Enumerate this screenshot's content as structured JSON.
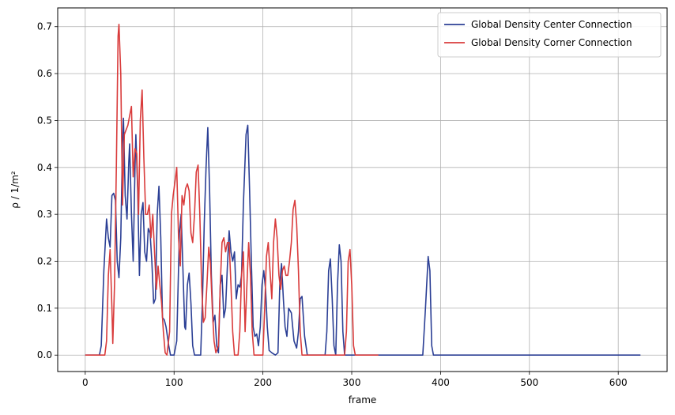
{
  "chart_data": {
    "type": "line",
    "xlabel": "frame",
    "ylabel": "ρ / 1/m²",
    "xlim": [
      -31,
      655
    ],
    "ylim": [
      -0.035,
      0.74
    ],
    "xticks": [
      0,
      100,
      200,
      300,
      400,
      500,
      600
    ],
    "xtick_labels": [
      "0",
      "100",
      "200",
      "300",
      "400",
      "500",
      "600"
    ],
    "yticks": [
      0.0,
      0.1,
      0.2,
      0.3,
      0.4,
      0.5,
      0.6,
      0.7
    ],
    "ytick_labels": [
      "0.0",
      "0.1",
      "0.2",
      "0.3",
      "0.4",
      "0.5",
      "0.6",
      "0.7"
    ],
    "grid": true,
    "legend_position": "top-right",
    "series": [
      {
        "name": "Global Density Center Connection",
        "color": "#2b3f95",
        "points": [
          [
            0,
            0
          ],
          [
            16,
            0
          ],
          [
            18,
            0.02
          ],
          [
            21,
            0.18
          ],
          [
            24,
            0.29
          ],
          [
            26,
            0.25
          ],
          [
            28,
            0.23
          ],
          [
            30,
            0.34
          ],
          [
            32,
            0.345
          ],
          [
            34,
            0.33
          ],
          [
            36,
            0.2
          ],
          [
            38,
            0.165
          ],
          [
            40,
            0.25
          ],
          [
            42,
            0.45
          ],
          [
            43,
            0.505
          ],
          [
            45,
            0.34
          ],
          [
            47,
            0.29
          ],
          [
            49,
            0.41
          ],
          [
            50,
            0.45
          ],
          [
            52,
            0.3
          ],
          [
            54,
            0.2
          ],
          [
            56,
            0.4
          ],
          [
            57,
            0.47
          ],
          [
            59,
            0.35
          ],
          [
            61,
            0.17
          ],
          [
            63,
            0.3
          ],
          [
            65,
            0.325
          ],
          [
            67,
            0.22
          ],
          [
            69,
            0.2
          ],
          [
            71,
            0.27
          ],
          [
            73,
            0.26
          ],
          [
            75,
            0.2
          ],
          [
            77,
            0.11
          ],
          [
            79,
            0.12
          ],
          [
            81,
            0.3
          ],
          [
            83,
            0.36
          ],
          [
            85,
            0.25
          ],
          [
            87,
            0.08
          ],
          [
            89,
            0.075
          ],
          [
            91,
            0.06
          ],
          [
            94,
            0.02
          ],
          [
            96,
            0
          ],
          [
            100,
            0
          ],
          [
            103,
            0.03
          ],
          [
            106,
            0.26
          ],
          [
            108,
            0.3
          ],
          [
            110,
            0.18
          ],
          [
            112,
            0.06
          ],
          [
            113,
            0.055
          ],
          [
            115,
            0.15
          ],
          [
            117,
            0.175
          ],
          [
            119,
            0.11
          ],
          [
            121,
            0.02
          ],
          [
            123,
            0
          ],
          [
            130,
            0
          ],
          [
            132,
            0.12
          ],
          [
            134,
            0.28
          ],
          [
            136,
            0.4
          ],
          [
            138,
            0.485
          ],
          [
            140,
            0.35
          ],
          [
            142,
            0.17
          ],
          [
            144,
            0.07
          ],
          [
            146,
            0.085
          ],
          [
            148,
            0.02
          ],
          [
            150,
            0.005
          ],
          [
            152,
            0.15
          ],
          [
            154,
            0.17
          ],
          [
            156,
            0.08
          ],
          [
            158,
            0.1
          ],
          [
            160,
            0.19
          ],
          [
            162,
            0.265
          ],
          [
            164,
            0.22
          ],
          [
            166,
            0.2
          ],
          [
            168,
            0.22
          ],
          [
            170,
            0.12
          ],
          [
            172,
            0.15
          ],
          [
            174,
            0.145
          ],
          [
            176,
            0.17
          ],
          [
            178,
            0.32
          ],
          [
            181,
            0.47
          ],
          [
            183,
            0.49
          ],
          [
            185,
            0.35
          ],
          [
            187,
            0.2
          ],
          [
            189,
            0.06
          ],
          [
            191,
            0.04
          ],
          [
            193,
            0.045
          ],
          [
            195,
            0.02
          ],
          [
            197,
            0.06
          ],
          [
            199,
            0.15
          ],
          [
            201,
            0.18
          ],
          [
            203,
            0.14
          ],
          [
            205,
            0.06
          ],
          [
            207,
            0.01
          ],
          [
            210,
            0.005
          ],
          [
            214,
            0
          ],
          [
            217,
            0.005
          ],
          [
            219,
            0.15
          ],
          [
            221,
            0.195
          ],
          [
            223,
            0.12
          ],
          [
            225,
            0.06
          ],
          [
            227,
            0.04
          ],
          [
            229,
            0.1
          ],
          [
            232,
            0.09
          ],
          [
            235,
            0.03
          ],
          [
            238,
            0.015
          ],
          [
            240,
            0.05
          ],
          [
            242,
            0.12
          ],
          [
            244,
            0.125
          ],
          [
            247,
            0.04
          ],
          [
            250,
            0
          ],
          [
            270,
            0
          ],
          [
            272,
            0.05
          ],
          [
            274,
            0.18
          ],
          [
            276,
            0.205
          ],
          [
            278,
            0.12
          ],
          [
            280,
            0.02
          ],
          [
            282,
            0
          ],
          [
            284,
            0.15
          ],
          [
            286,
            0.235
          ],
          [
            288,
            0.2
          ],
          [
            290,
            0.05
          ],
          [
            292,
            0
          ],
          [
            380,
            0
          ],
          [
            383,
            0.1
          ],
          [
            386,
            0.21
          ],
          [
            388,
            0.18
          ],
          [
            390,
            0.02
          ],
          [
            392,
            0
          ],
          [
            625,
            0
          ]
        ]
      },
      {
        "name": "Global Density Corner Connection",
        "color": "#d93b3b",
        "points": [
          [
            0,
            0
          ],
          [
            22,
            0
          ],
          [
            24,
            0.03
          ],
          [
            26,
            0.17
          ],
          [
            28,
            0.225
          ],
          [
            30,
            0.1
          ],
          [
            31,
            0.025
          ],
          [
            33,
            0.15
          ],
          [
            35,
            0.4
          ],
          [
            37,
            0.68
          ],
          [
            38,
            0.705
          ],
          [
            40,
            0.6
          ],
          [
            42,
            0.32
          ],
          [
            44,
            0.47
          ],
          [
            46,
            0.48
          ],
          [
            48,
            0.49
          ],
          [
            50,
            0.51
          ],
          [
            52,
            0.53
          ],
          [
            54,
            0.38
          ],
          [
            56,
            0.44
          ],
          [
            58,
            0.43
          ],
          [
            60,
            0.3
          ],
          [
            62,
            0.5
          ],
          [
            64,
            0.565
          ],
          [
            66,
            0.42
          ],
          [
            68,
            0.3
          ],
          [
            70,
            0.3
          ],
          [
            72,
            0.32
          ],
          [
            74,
            0.25
          ],
          [
            76,
            0.3
          ],
          [
            78,
            0.22
          ],
          [
            80,
            0.14
          ],
          [
            82,
            0.19
          ],
          [
            84,
            0.15
          ],
          [
            86,
            0.11
          ],
          [
            88,
            0.05
          ],
          [
            90,
            0.005
          ],
          [
            92,
            0
          ],
          [
            95,
            0.05
          ],
          [
            97,
            0.3
          ],
          [
            99,
            0.34
          ],
          [
            101,
            0.37
          ],
          [
            103,
            0.4
          ],
          [
            105,
            0.25
          ],
          [
            107,
            0.19
          ],
          [
            109,
            0.34
          ],
          [
            111,
            0.32
          ],
          [
            113,
            0.355
          ],
          [
            115,
            0.365
          ],
          [
            117,
            0.35
          ],
          [
            119,
            0.26
          ],
          [
            121,
            0.24
          ],
          [
            123,
            0.3
          ],
          [
            125,
            0.39
          ],
          [
            127,
            0.405
          ],
          [
            129,
            0.3
          ],
          [
            131,
            0.15
          ],
          [
            133,
            0.07
          ],
          [
            135,
            0.08
          ],
          [
            137,
            0.15
          ],
          [
            139,
            0.23
          ],
          [
            141,
            0.195
          ],
          [
            143,
            0.1
          ],
          [
            145,
            0.03
          ],
          [
            147,
            0.005
          ],
          [
            150,
            0.02
          ],
          [
            152,
            0.15
          ],
          [
            154,
            0.24
          ],
          [
            156,
            0.25
          ],
          [
            158,
            0.22
          ],
          [
            160,
            0.24
          ],
          [
            162,
            0.24
          ],
          [
            164,
            0.15
          ],
          [
            166,
            0.05
          ],
          [
            168,
            0
          ],
          [
            172,
            0
          ],
          [
            174,
            0.05
          ],
          [
            176,
            0.17
          ],
          [
            178,
            0.22
          ],
          [
            180,
            0.05
          ],
          [
            182,
            0.15
          ],
          [
            184,
            0.24
          ],
          [
            186,
            0.17
          ],
          [
            188,
            0.05
          ],
          [
            190,
            0
          ],
          [
            200,
            0
          ],
          [
            202,
            0.1
          ],
          [
            204,
            0.21
          ],
          [
            206,
            0.24
          ],
          [
            208,
            0.18
          ],
          [
            210,
            0.12
          ],
          [
            212,
            0.24
          ],
          [
            214,
            0.29
          ],
          [
            216,
            0.25
          ],
          [
            218,
            0.17
          ],
          [
            220,
            0.14
          ],
          [
            222,
            0.18
          ],
          [
            224,
            0.19
          ],
          [
            226,
            0.17
          ],
          [
            228,
            0.17
          ],
          [
            230,
            0.2
          ],
          [
            232,
            0.24
          ],
          [
            234,
            0.31
          ],
          [
            236,
            0.33
          ],
          [
            238,
            0.28
          ],
          [
            240,
            0.18
          ],
          [
            242,
            0.05
          ],
          [
            244,
            0
          ],
          [
            292,
            0
          ],
          [
            294,
            0.05
          ],
          [
            296,
            0.2
          ],
          [
            298,
            0.225
          ],
          [
            300,
            0.15
          ],
          [
            302,
            0.02
          ],
          [
            304,
            0
          ],
          [
            330,
            0
          ]
        ]
      }
    ]
  }
}
